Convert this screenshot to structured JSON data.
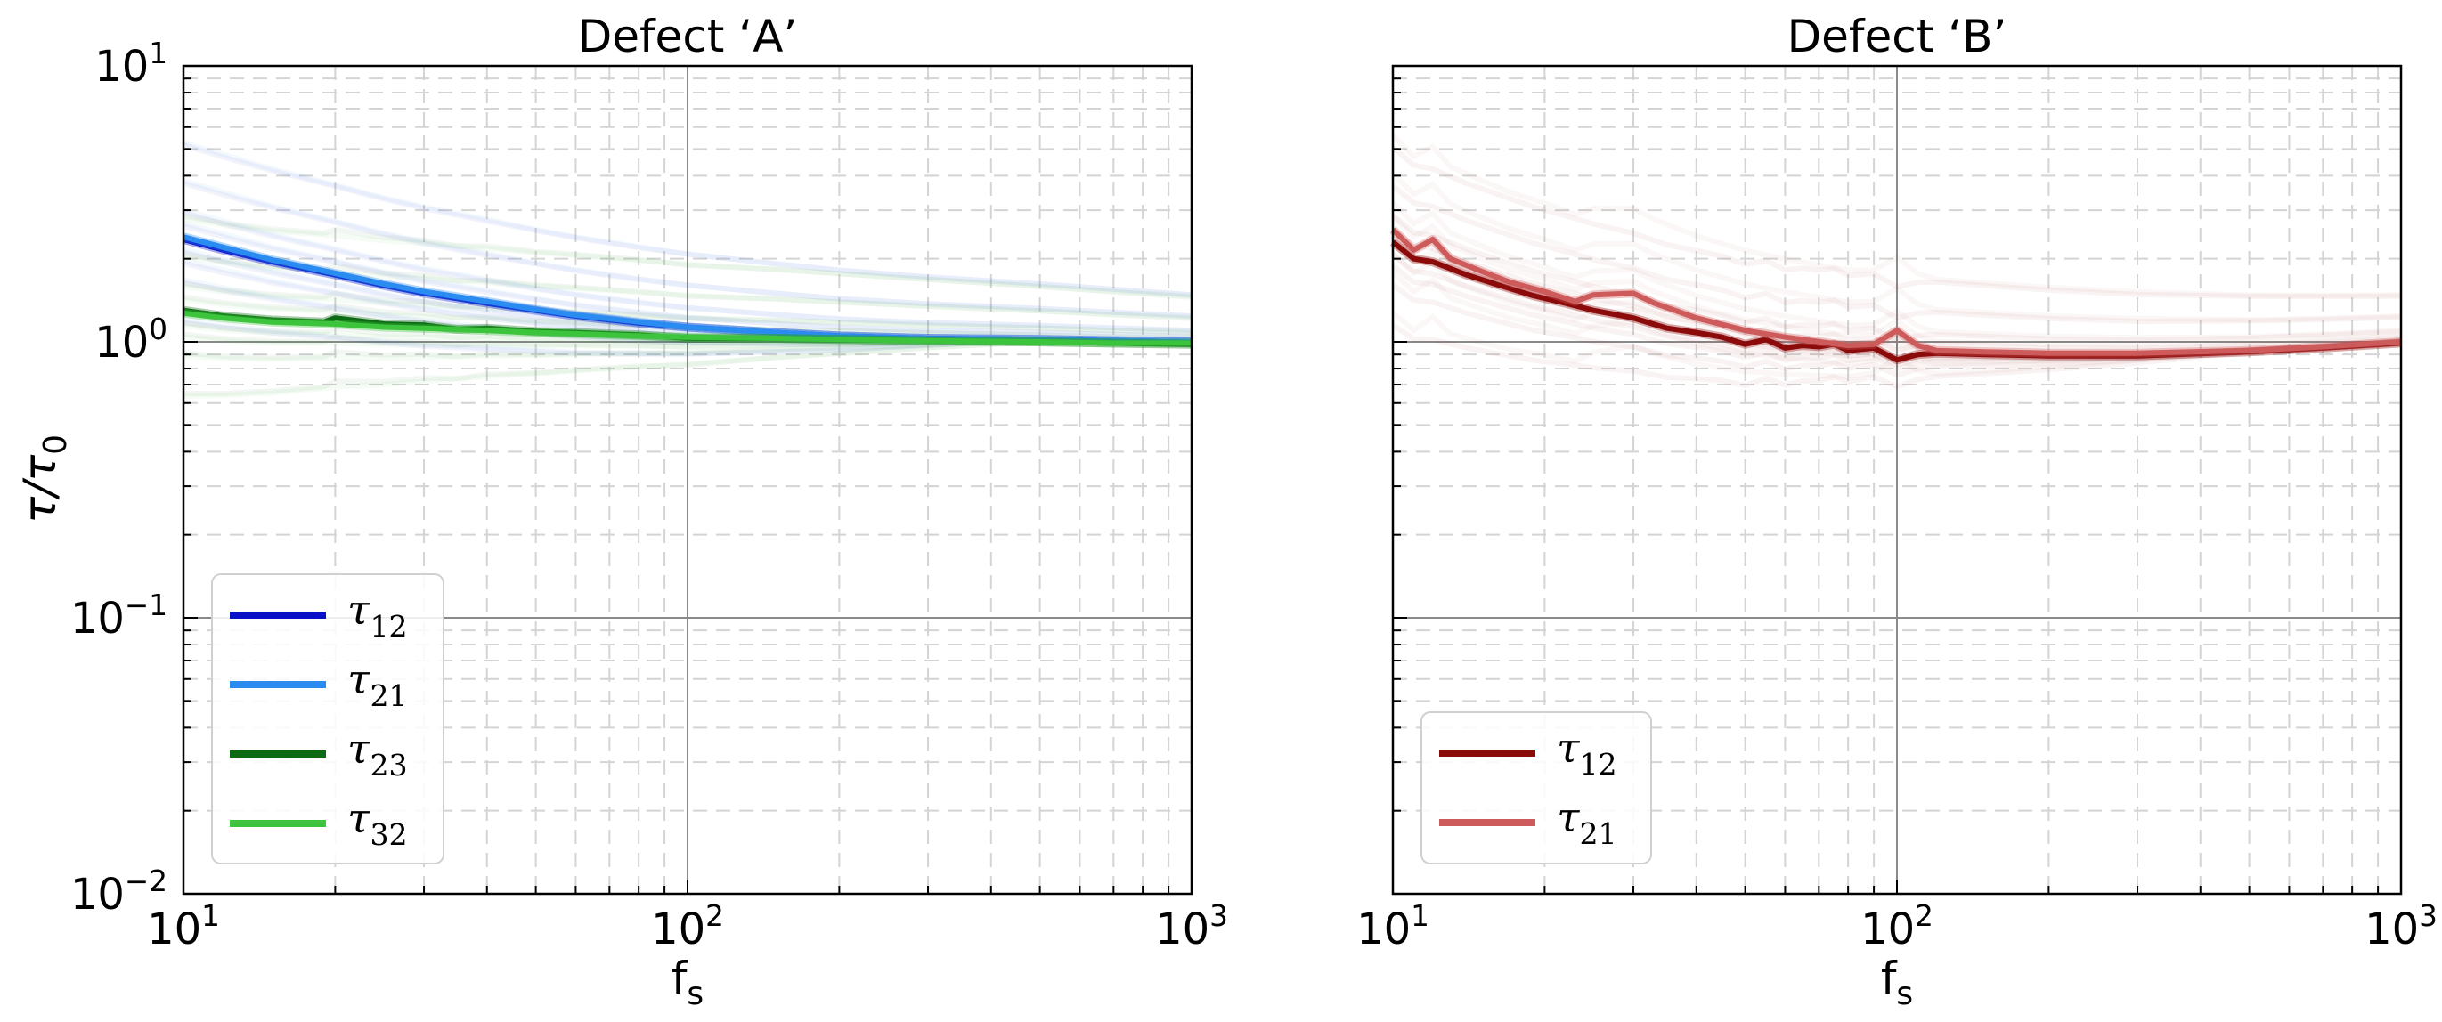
{
  "figure": {
    "ylabel": "τ/τ₀"
  },
  "chart_data": [
    {
      "type": "line",
      "title": "Defect ‘A’",
      "xlabel": "fs",
      "ylabel": "τ/τ₀",
      "xscale": "log",
      "yscale": "log",
      "xlim": [
        10,
        1000
      ],
      "ylim": [
        0.01,
        10
      ],
      "xticks": [
        {
          "value": 10,
          "base": "10",
          "exp": "1"
        },
        {
          "value": 100,
          "base": "10",
          "exp": "2"
        },
        {
          "value": 1000,
          "base": "10",
          "exp": "3"
        }
      ],
      "yticks": [
        {
          "value": 10,
          "base": "10",
          "exp": "1"
        },
        {
          "value": 1,
          "base": "10",
          "exp": "0"
        },
        {
          "value": 0.1,
          "base": "10",
          "exp": "−1"
        },
        {
          "value": 0.01,
          "base": "10",
          "exp": "−2"
        }
      ],
      "grid": true,
      "legend_position": "bottom-left",
      "series": [
        {
          "name": "τ12",
          "sym": "τ",
          "sub": "12",
          "color": "#0a10c8",
          "x": [
            10,
            12,
            15,
            20,
            25,
            30,
            40,
            50,
            60,
            80,
            100,
            150,
            200,
            300,
            500,
            700,
            1000
          ],
          "y": [
            2.35,
            2.15,
            1.95,
            1.75,
            1.6,
            1.5,
            1.38,
            1.3,
            1.24,
            1.17,
            1.13,
            1.08,
            1.05,
            1.03,
            1.02,
            1.01,
            1.0
          ]
        },
        {
          "name": "τ21",
          "sym": "τ",
          "sub": "21",
          "color": "#2a8cf0",
          "x": [
            10,
            12,
            15,
            20,
            25,
            30,
            40,
            50,
            60,
            80,
            100,
            150,
            200,
            300,
            500,
            700,
            1000
          ],
          "y": [
            2.4,
            2.2,
            1.98,
            1.77,
            1.62,
            1.52,
            1.4,
            1.31,
            1.25,
            1.18,
            1.13,
            1.08,
            1.05,
            1.03,
            1.02,
            1.01,
            1.0
          ]
        },
        {
          "name": "τ23",
          "sym": "τ",
          "sub": "23",
          "color": "#0b6a12",
          "x": [
            10,
            12,
            15,
            19,
            20,
            25,
            30,
            35,
            40,
            50,
            60,
            80,
            100,
            150,
            200,
            300,
            500,
            700,
            1000
          ],
          "y": [
            1.3,
            1.24,
            1.2,
            1.18,
            1.22,
            1.16,
            1.15,
            1.11,
            1.12,
            1.09,
            1.08,
            1.06,
            1.03,
            1.03,
            1.02,
            1.01,
            1.0,
            0.99,
            0.98
          ]
        },
        {
          "name": "τ32",
          "sym": "τ",
          "sub": "32",
          "color": "#3cc43c",
          "x": [
            10,
            12,
            15,
            20,
            25,
            30,
            40,
            50,
            60,
            80,
            100,
            150,
            200,
            300,
            500,
            700,
            1000
          ],
          "y": [
            1.27,
            1.22,
            1.18,
            1.16,
            1.13,
            1.12,
            1.1,
            1.08,
            1.07,
            1.05,
            1.04,
            1.03,
            1.02,
            1.01,
            1.0,
            0.99,
            0.99
          ]
        }
      ]
    },
    {
      "type": "line",
      "title": "Defect ‘B’",
      "xlabel": "fs",
      "xscale": "log",
      "yscale": "log",
      "xlim": [
        10,
        1000
      ],
      "ylim": [
        0.01,
        10
      ],
      "xticks": [
        {
          "value": 10,
          "base": "10",
          "exp": "1"
        },
        {
          "value": 100,
          "base": "10",
          "exp": "2"
        },
        {
          "value": 1000,
          "base": "10",
          "exp": "3"
        }
      ],
      "grid": true,
      "legend_position": "bottom-left",
      "series": [
        {
          "name": "τ12",
          "sym": "τ",
          "sub": "12",
          "color": "#8b0a0a",
          "x": [
            10,
            11,
            12,
            14,
            16,
            19,
            22,
            25,
            30,
            35,
            40,
            45,
            50,
            55,
            60,
            65,
            70,
            75,
            80,
            90,
            100,
            110,
            120,
            150,
            200,
            300,
            500,
            700,
            1000
          ],
          "y": [
            2.3,
            2.0,
            1.95,
            1.75,
            1.62,
            1.47,
            1.38,
            1.3,
            1.22,
            1.12,
            1.08,
            1.04,
            0.98,
            1.02,
            0.95,
            0.97,
            0.96,
            0.98,
            0.93,
            0.95,
            0.86,
            0.9,
            0.91,
            0.9,
            0.89,
            0.89,
            0.92,
            0.95,
            0.99
          ]
        },
        {
          "name": "τ21",
          "sym": "τ",
          "sub": "21",
          "color": "#cd5b5b",
          "x": [
            10,
            11,
            12,
            13,
            15,
            17,
            20,
            23,
            25,
            30,
            33,
            40,
            50,
            60,
            80,
            90,
            100,
            110,
            120,
            150,
            200,
            300,
            500,
            700,
            1000
          ],
          "y": [
            2.55,
            2.15,
            2.35,
            2.0,
            1.8,
            1.65,
            1.52,
            1.4,
            1.48,
            1.5,
            1.38,
            1.22,
            1.1,
            1.04,
            0.97,
            0.98,
            1.1,
            0.97,
            0.93,
            0.92,
            0.91,
            0.91,
            0.93,
            0.96,
            1.0
          ]
        }
      ]
    }
  ]
}
